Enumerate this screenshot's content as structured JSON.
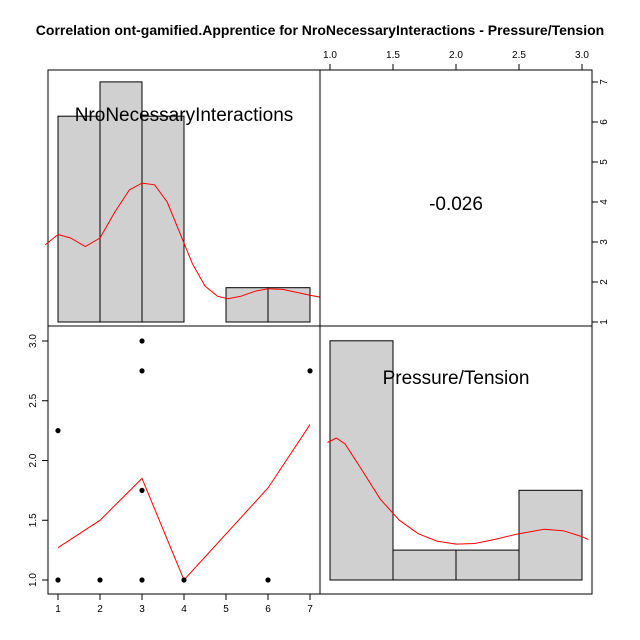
{
  "chart_data": {
    "type": "pairs",
    "title": "Correlation ont-gamified.Apprentice for NroNecessaryInteractions - Pressure/Tension",
    "variables": [
      "NroNecessaryInteractions",
      "Pressure/Tension"
    ],
    "correlation": "-0.026",
    "histograms": [
      {
        "variable": "NroNecessaryInteractions",
        "bins": [
          {
            "from": 1,
            "to": 2,
            "count": 6
          },
          {
            "from": 2,
            "to": 3,
            "count": 7
          },
          {
            "from": 3,
            "to": 4,
            "count": 6
          },
          {
            "from": 4,
            "to": 5,
            "count": 0
          },
          {
            "from": 5,
            "to": 6,
            "count": 1
          },
          {
            "from": 6,
            "to": 7,
            "count": 1
          }
        ],
        "density": [
          [
            0.7,
            2.25
          ],
          [
            1.0,
            2.55
          ],
          [
            1.3,
            2.45
          ],
          [
            1.65,
            2.2
          ],
          [
            2.0,
            2.45
          ],
          [
            2.35,
            3.2
          ],
          [
            2.7,
            3.85
          ],
          [
            3.0,
            4.05
          ],
          [
            3.3,
            4.0
          ],
          [
            3.6,
            3.5
          ],
          [
            3.9,
            2.6
          ],
          [
            4.2,
            1.7
          ],
          [
            4.5,
            1.05
          ],
          [
            4.8,
            0.75
          ],
          [
            5.05,
            0.68
          ],
          [
            5.35,
            0.75
          ],
          [
            5.7,
            0.9
          ],
          [
            6.0,
            0.97
          ],
          [
            6.35,
            0.95
          ],
          [
            6.7,
            0.86
          ],
          [
            7.0,
            0.78
          ],
          [
            7.25,
            0.72
          ]
        ]
      },
      {
        "variable": "Pressure/Tension",
        "bins": [
          {
            "from": 1.0,
            "to": 1.5,
            "count": 8
          },
          {
            "from": 1.5,
            "to": 2.0,
            "count": 1
          },
          {
            "from": 2.0,
            "to": 2.5,
            "count": 1
          },
          {
            "from": 2.5,
            "to": 3.0,
            "count": 3
          }
        ],
        "density": [
          [
            0.98,
            4.6
          ],
          [
            1.05,
            4.75
          ],
          [
            1.12,
            4.55
          ],
          [
            1.25,
            3.7
          ],
          [
            1.4,
            2.7
          ],
          [
            1.55,
            2.0
          ],
          [
            1.7,
            1.55
          ],
          [
            1.85,
            1.3
          ],
          [
            2.0,
            1.2
          ],
          [
            2.15,
            1.22
          ],
          [
            2.3,
            1.35
          ],
          [
            2.5,
            1.55
          ],
          [
            2.7,
            1.7
          ],
          [
            2.85,
            1.65
          ],
          [
            3.0,
            1.45
          ],
          [
            3.05,
            1.35
          ]
        ]
      }
    ],
    "scatter": {
      "x": [
        1,
        1,
        2,
        3,
        3,
        3,
        3,
        4,
        6,
        7
      ],
      "y": [
        1.0,
        2.25,
        1.0,
        1.0,
        1.75,
        2.75,
        3.0,
        1.0,
        1.0,
        2.75
      ],
      "smooth": [
        [
          1,
          1.27
        ],
        [
          2,
          1.5
        ],
        [
          3,
          1.85
        ],
        [
          4,
          1.0
        ],
        [
          6,
          1.77
        ],
        [
          7,
          2.3
        ]
      ]
    },
    "x_ticks_nro": [
      "1",
      "2",
      "3",
      "4",
      "5",
      "6",
      "7"
    ],
    "x_ticks_pressure": [
      "1.0",
      "1.5",
      "2.0",
      "2.5",
      "3.0"
    ],
    "y_ticks_pressure": [
      "1.0",
      "1.5",
      "2.0",
      "2.5",
      "3.0"
    ],
    "y_ticks_nro": [
      "1",
      "2",
      "3",
      "4",
      "5",
      "6",
      "7"
    ],
    "colors": {
      "bar_fill": "#d0d0d0",
      "density": "#ff0000",
      "points": "#000000",
      "axis": "#000000"
    }
  }
}
